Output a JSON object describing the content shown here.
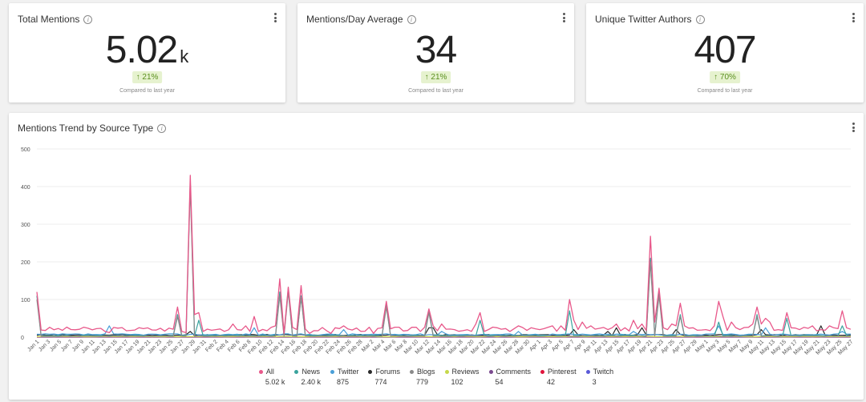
{
  "kpis": [
    {
      "title": "Total Mentions",
      "value": "5.02",
      "unit": "k",
      "change": "↑ 21%",
      "compare": "Compared to last year"
    },
    {
      "title": "Mentions/Day Average",
      "value": "34",
      "unit": "",
      "change": "↑ 21%",
      "compare": "Compared to last year"
    },
    {
      "title": "Unique Twitter Authors",
      "value": "407",
      "unit": "",
      "change": "↑ 70%",
      "compare": "Compared to last year"
    }
  ],
  "trend": {
    "title": "Mentions Trend by Source Type"
  },
  "chart_data": {
    "type": "line",
    "title": "Mentions Trend by Source Type",
    "ylim": [
      0,
      500
    ],
    "yticks": [
      0,
      100,
      200,
      300,
      400,
      500
    ],
    "grid": true,
    "legend_position": "bottom",
    "xtick_labels": [
      "Jan 1",
      "Jan 3",
      "Jan 5",
      "Jan 7",
      "Jan 9",
      "Jan 11",
      "Jan 13",
      "Jan 15",
      "Jan 17",
      "Jan 19",
      "Jan 21",
      "Jan 23",
      "Jan 25",
      "Jan 27",
      "Jan 29",
      "Jan 31",
      "Feb 2",
      "Feb 4",
      "Feb 6",
      "Feb 8",
      "Feb 10",
      "Feb 12",
      "Feb 14",
      "Feb 16",
      "Feb 18",
      "Feb 20",
      "Feb 22",
      "Feb 24",
      "Feb 26",
      "Feb 28",
      "Mar 2",
      "Mar 4",
      "Mar 6",
      "Mar 8",
      "Mar 10",
      "Mar 12",
      "Mar 14",
      "Mar 16",
      "Mar 18",
      "Mar 20",
      "Mar 22",
      "Mar 24",
      "Mar 26",
      "Mar 28",
      "Mar 30",
      "Apr 1",
      "Apr 3",
      "Apr 5",
      "Apr 7",
      "Apr 9",
      "Apr 11",
      "Apr 13",
      "Apr 15",
      "Apr 17",
      "Apr 19",
      "Apr 21",
      "Apr 23",
      "Apr 25",
      "Apr 27",
      "Apr 29",
      "May 1",
      "May 3",
      "May 5",
      "May 7",
      "May 9",
      "May 11",
      "May 13",
      "May 15",
      "May 17",
      "May 19",
      "May 21",
      "May 23",
      "May 25",
      "May 27"
    ],
    "series": [
      {
        "name": "All",
        "total": "5.02 k",
        "color": "#e8588a",
        "peaks": {
          "0": 120,
          "17": 12,
          "33": 80,
          "34": 15,
          "35": 12,
          "36": 430,
          "37": 60,
          "38": 65,
          "39": 15,
          "42": 20,
          "46": 35,
          "47": 20,
          "49": 30,
          "51": 55,
          "52": 15,
          "56": 30,
          "57": 155,
          "58": 10,
          "59": 133,
          "61": 20,
          "62": 137,
          "64": 10,
          "69": 10,
          "70": 25,
          "72": 30,
          "79": 10,
          "82": 95,
          "90": 15,
          "92": 75,
          "93": 30,
          "95": 35,
          "98": 20,
          "103": 35,
          "104": 65,
          "105": 15,
          "108": 25,
          "111": 15,
          "113": 30,
          "118": 20,
          "121": 30,
          "123": 30,
          "125": 100,
          "126": 45,
          "128": 40,
          "130": 30,
          "134": 20,
          "136": 35,
          "138": 25,
          "140": 45,
          "142": 35,
          "144": 268,
          "145": 40,
          "146": 130,
          "147": 25,
          "148": 20,
          "149": 35,
          "150": 30,
          "151": 90,
          "152": 30,
          "154": 25,
          "157": 20,
          "159": 30,
          "160": 95,
          "161": 55,
          "163": 40,
          "165": 20,
          "168": 35,
          "169": 80,
          "170": 35,
          "171": 50,
          "172": 40,
          "174": 20,
          "176": 65,
          "177": 25,
          "179": 20,
          "182": 30,
          "184": 20,
          "186": 30,
          "187": 25,
          "189": 70,
          "190": 25
        },
        "base": 15
      },
      {
        "name": "News",
        "total": "2.40 k",
        "color": "#3aa39d",
        "peaks": {
          "0": 110,
          "33": 60,
          "36": 415,
          "38": 45,
          "57": 120,
          "59": 130,
          "62": 110,
          "82": 88,
          "92": 70,
          "104": 45,
          "125": 70,
          "144": 210,
          "146": 120,
          "151": 60,
          "160": 40,
          "169": 60,
          "176": 50,
          "189": 30
        },
        "base": 3
      },
      {
        "name": "Twitter",
        "total": "875",
        "color": "#4a9fd8",
        "peaks": {
          "17": 30,
          "51": 25,
          "72": 20,
          "95": 15,
          "113": 15,
          "140": 15,
          "160": 30,
          "171": 25,
          "189": 15
        },
        "base": 5
      },
      {
        "name": "Forums",
        "total": "774",
        "color": "#2b2b2b",
        "peaks": {
          "36": 15,
          "92": 25,
          "93": 25,
          "126": 20,
          "134": 15,
          "136": 25,
          "142": 25,
          "150": 20,
          "170": 20,
          "184": 30
        },
        "base": 4
      },
      {
        "name": "Blogs",
        "total": "779",
        "color": "#8a8a8a",
        "peaks": {
          "0": 100,
          "33": 55,
          "36": 400,
          "57": 110,
          "59": 120,
          "62": 105,
          "82": 80,
          "92": 65,
          "144": 200,
          "146": 110,
          "151": 55,
          "169": 55
        },
        "base": 2
      },
      {
        "name": "Reviews",
        "total": "102",
        "color": "#c6d84a",
        "peaks": {},
        "base": 1
      },
      {
        "name": "Comments",
        "total": "54",
        "color": "#7b4a8f",
        "peaks": {},
        "base": 0.5
      },
      {
        "name": "Pinterest",
        "total": "42",
        "color": "#e0143c",
        "peaks": {},
        "base": 0.3
      },
      {
        "name": "Twitch",
        "total": "3",
        "color": "#5a5ad8",
        "peaks": {},
        "base": 0
      }
    ]
  }
}
